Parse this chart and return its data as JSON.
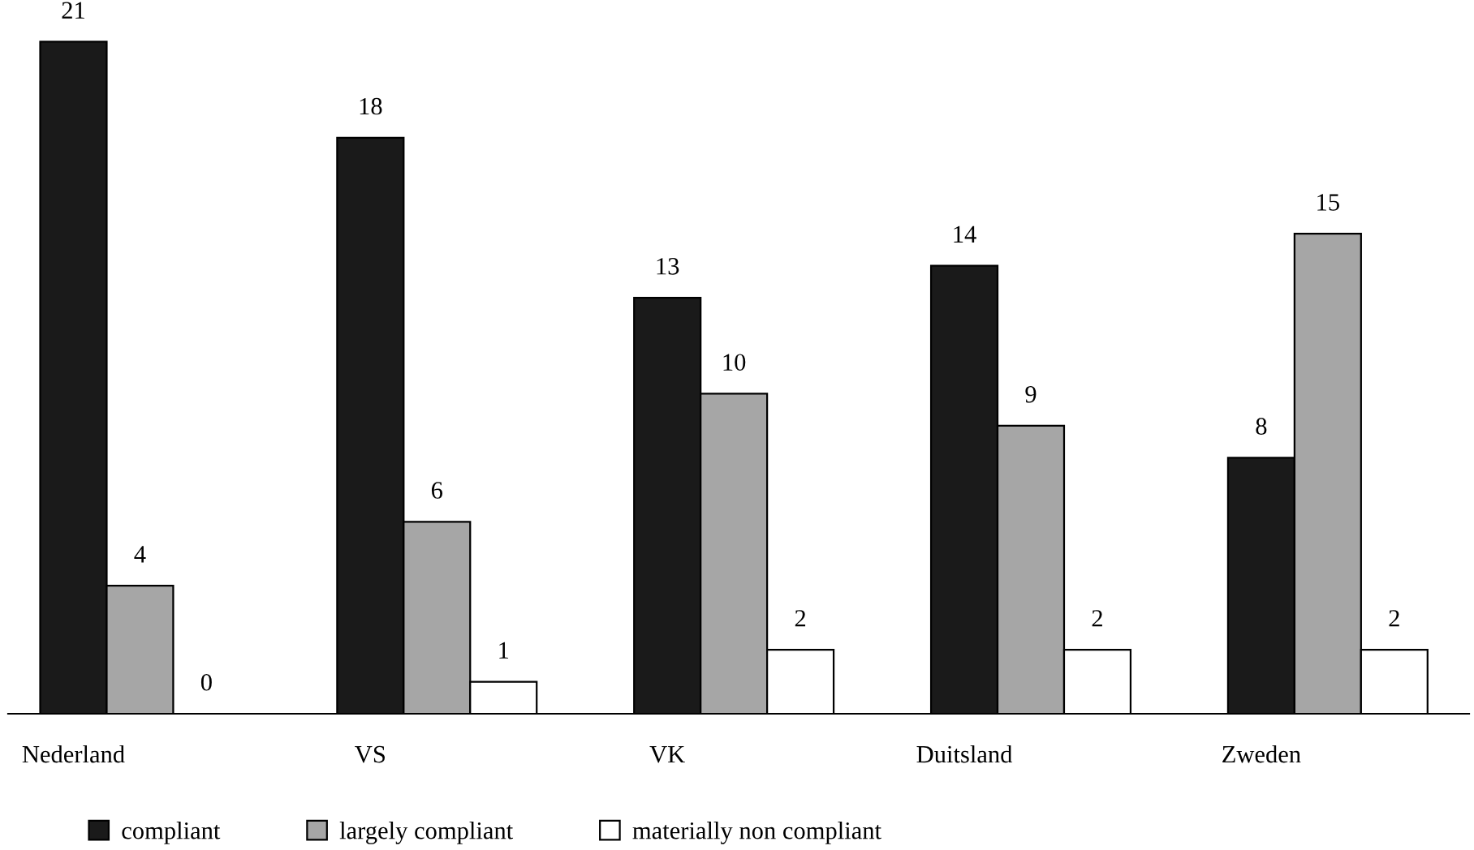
{
  "chart_data": {
    "type": "bar",
    "categories": [
      "Nederland",
      "VS",
      "VK",
      "Duitsland",
      "Zweden"
    ],
    "series": [
      {
        "name": "compliant",
        "color": "#1a1a1a",
        "values": [
          21,
          18,
          13,
          14,
          8
        ]
      },
      {
        "name": "largely compliant",
        "color": "#a6a6a6",
        "values": [
          4,
          6,
          10,
          9,
          15
        ]
      },
      {
        "name": "materially non compliant",
        "color": "#ffffff",
        "values": [
          0,
          1,
          2,
          2,
          2
        ]
      }
    ],
    "data_labels": true,
    "legend": "bottom",
    "grid": false,
    "tick_labels": "x"
  }
}
